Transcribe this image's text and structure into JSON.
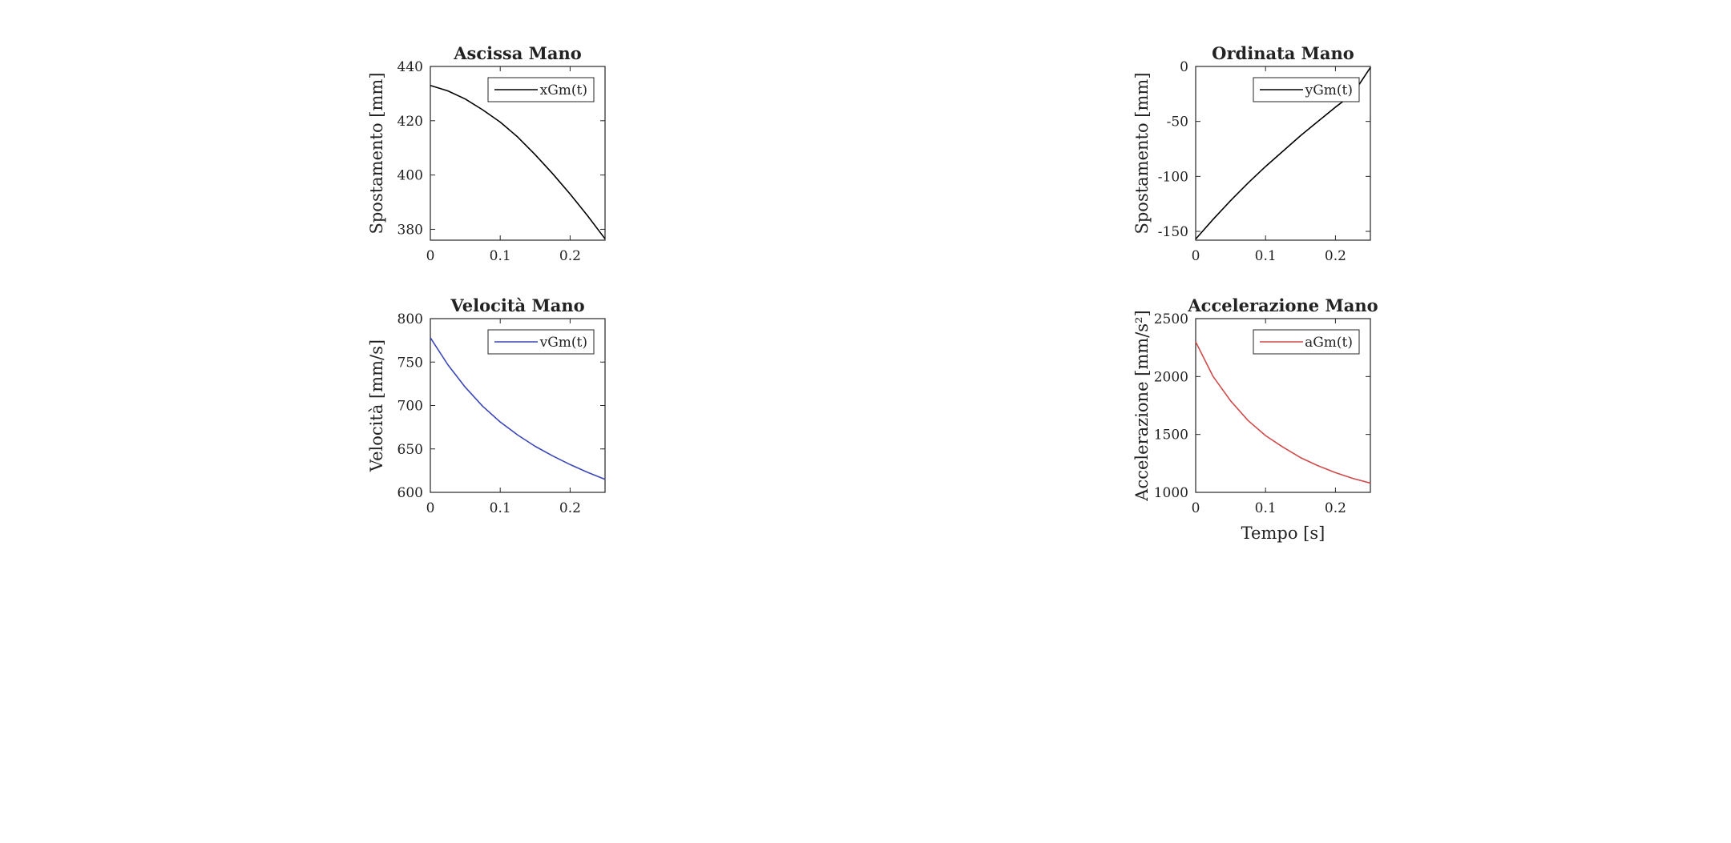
{
  "chart_data": [
    {
      "type": "line",
      "title": "Ascissa Mano",
      "xlabel": "",
      "ylabel": "Spostamento [mm]",
      "xlim": [
        0,
        0.25
      ],
      "ylim": [
        376,
        440
      ],
      "xticks": [
        0,
        0.1,
        0.2
      ],
      "yticks": [
        380,
        400,
        420,
        440
      ],
      "grid": false,
      "legend_position": "top-right",
      "series": [
        {
          "name": "xGm(t)",
          "color": "#000000",
          "x": [
            0,
            0.025,
            0.05,
            0.075,
            0.1,
            0.125,
            0.15,
            0.175,
            0.2,
            0.225,
            0.25
          ],
          "y": [
            433.0,
            431.0,
            428.0,
            424.0,
            419.5,
            414.0,
            407.5,
            400.5,
            393.0,
            385.0,
            376.5
          ]
        }
      ]
    },
    {
      "type": "line",
      "title": "Ordinata Mano",
      "xlabel": "",
      "ylabel": "Spostamento [mm]",
      "xlim": [
        0,
        0.25
      ],
      "ylim": [
        -158,
        0
      ],
      "xticks": [
        0,
        0.1,
        0.2
      ],
      "yticks": [
        -150,
        -100,
        -50,
        0
      ],
      "grid": false,
      "legend_position": "top-right",
      "series": [
        {
          "name": "yGm(t)",
          "color": "#000000",
          "x": [
            0,
            0.025,
            0.05,
            0.075,
            0.1,
            0.125,
            0.15,
            0.175,
            0.2,
            0.225,
            0.25
          ],
          "y": [
            -157.0,
            -139.0,
            -122.0,
            -106.0,
            -91.0,
            -77.0,
            -63.0,
            -50.0,
            -37.0,
            -25.0,
            -1.0
          ]
        }
      ]
    },
    {
      "type": "line",
      "title": "Velocità Mano",
      "xlabel": "",
      "ylabel": "Velocità [mm/s]",
      "xlim": [
        0,
        0.25
      ],
      "ylim": [
        600,
        800
      ],
      "xticks": [
        0,
        0.1,
        0.2
      ],
      "yticks": [
        600,
        650,
        700,
        750,
        800
      ],
      "grid": false,
      "legend_position": "top-right",
      "series": [
        {
          "name": "vGm(t)",
          "color": "#3b47b8",
          "x": [
            0,
            0.025,
            0.05,
            0.075,
            0.1,
            0.125,
            0.15,
            0.175,
            0.2,
            0.225,
            0.25
          ],
          "y": [
            778,
            747,
            721,
            699,
            681,
            666,
            653,
            642,
            632,
            623,
            615
          ]
        }
      ]
    },
    {
      "type": "line",
      "title": "Accelerazione Mano",
      "xlabel": "Tempo [s]",
      "ylabel": "Accelerazione [mm/s²]",
      "xlim": [
        0,
        0.25
      ],
      "ylim": [
        1000,
        2500
      ],
      "xticks": [
        0,
        0.1,
        0.2
      ],
      "yticks": [
        1000,
        1500,
        2000,
        2500
      ],
      "grid": false,
      "legend_position": "top-right",
      "series": [
        {
          "name": "aGm(t)",
          "color": "#d04a4a",
          "x": [
            0,
            0.025,
            0.05,
            0.075,
            0.1,
            0.125,
            0.15,
            0.175,
            0.2,
            0.225,
            0.25
          ],
          "y": [
            2300,
            2000,
            1790,
            1620,
            1490,
            1390,
            1300,
            1230,
            1170,
            1120,
            1080
          ]
        }
      ]
    }
  ]
}
